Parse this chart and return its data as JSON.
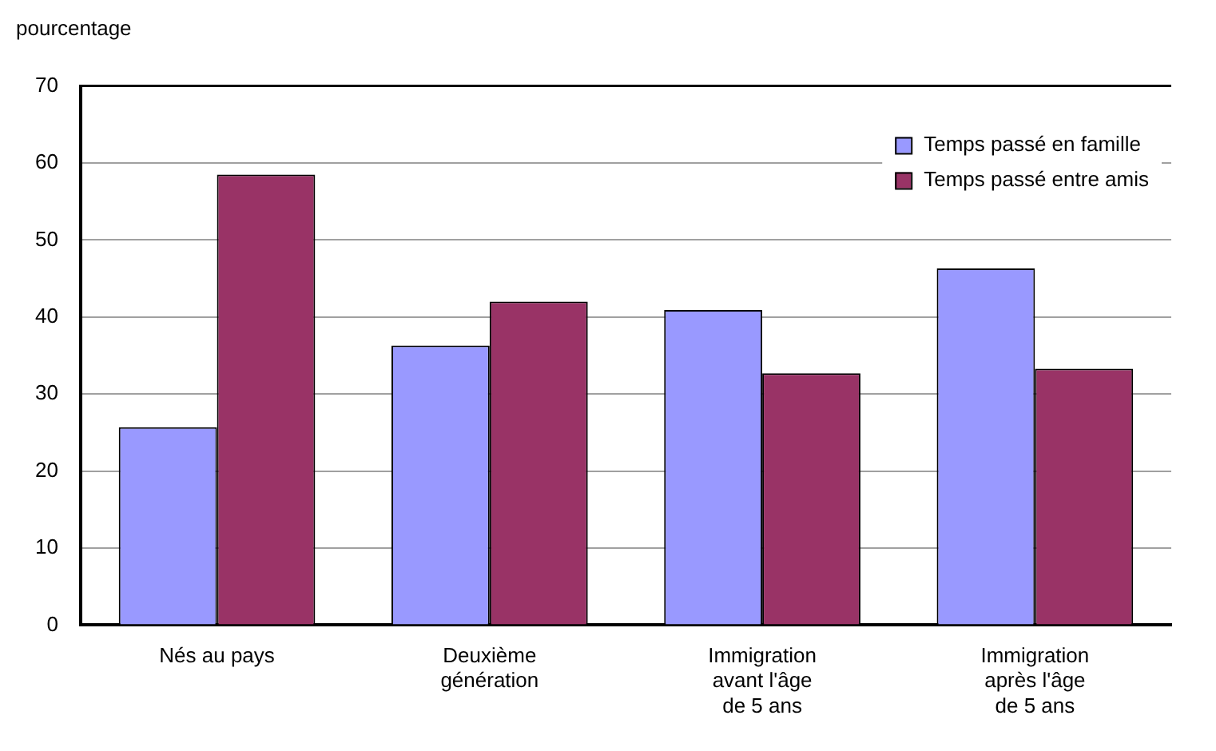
{
  "chart_data": {
    "type": "bar",
    "ylabel": "pourcentage",
    "categories": [
      "Nés au pays",
      "Deuxième génération",
      "Immigration avant l'âge de 5 ans",
      "Immigration après l'âge de 5 ans"
    ],
    "series": [
      {
        "name": "Temps passé en famille",
        "color": "#9999ff",
        "values": [
          25.7,
          36.3,
          40.9,
          46.3
        ]
      },
      {
        "name": "Temps passé entre amis",
        "color": "#993366",
        "values": [
          58.5,
          42.0,
          32.7,
          33.3
        ]
      }
    ],
    "ylim": [
      0,
      70
    ],
    "yticks": [
      0,
      10,
      20,
      30,
      40,
      50,
      60,
      70
    ],
    "grid": "y",
    "legend": "top right"
  }
}
